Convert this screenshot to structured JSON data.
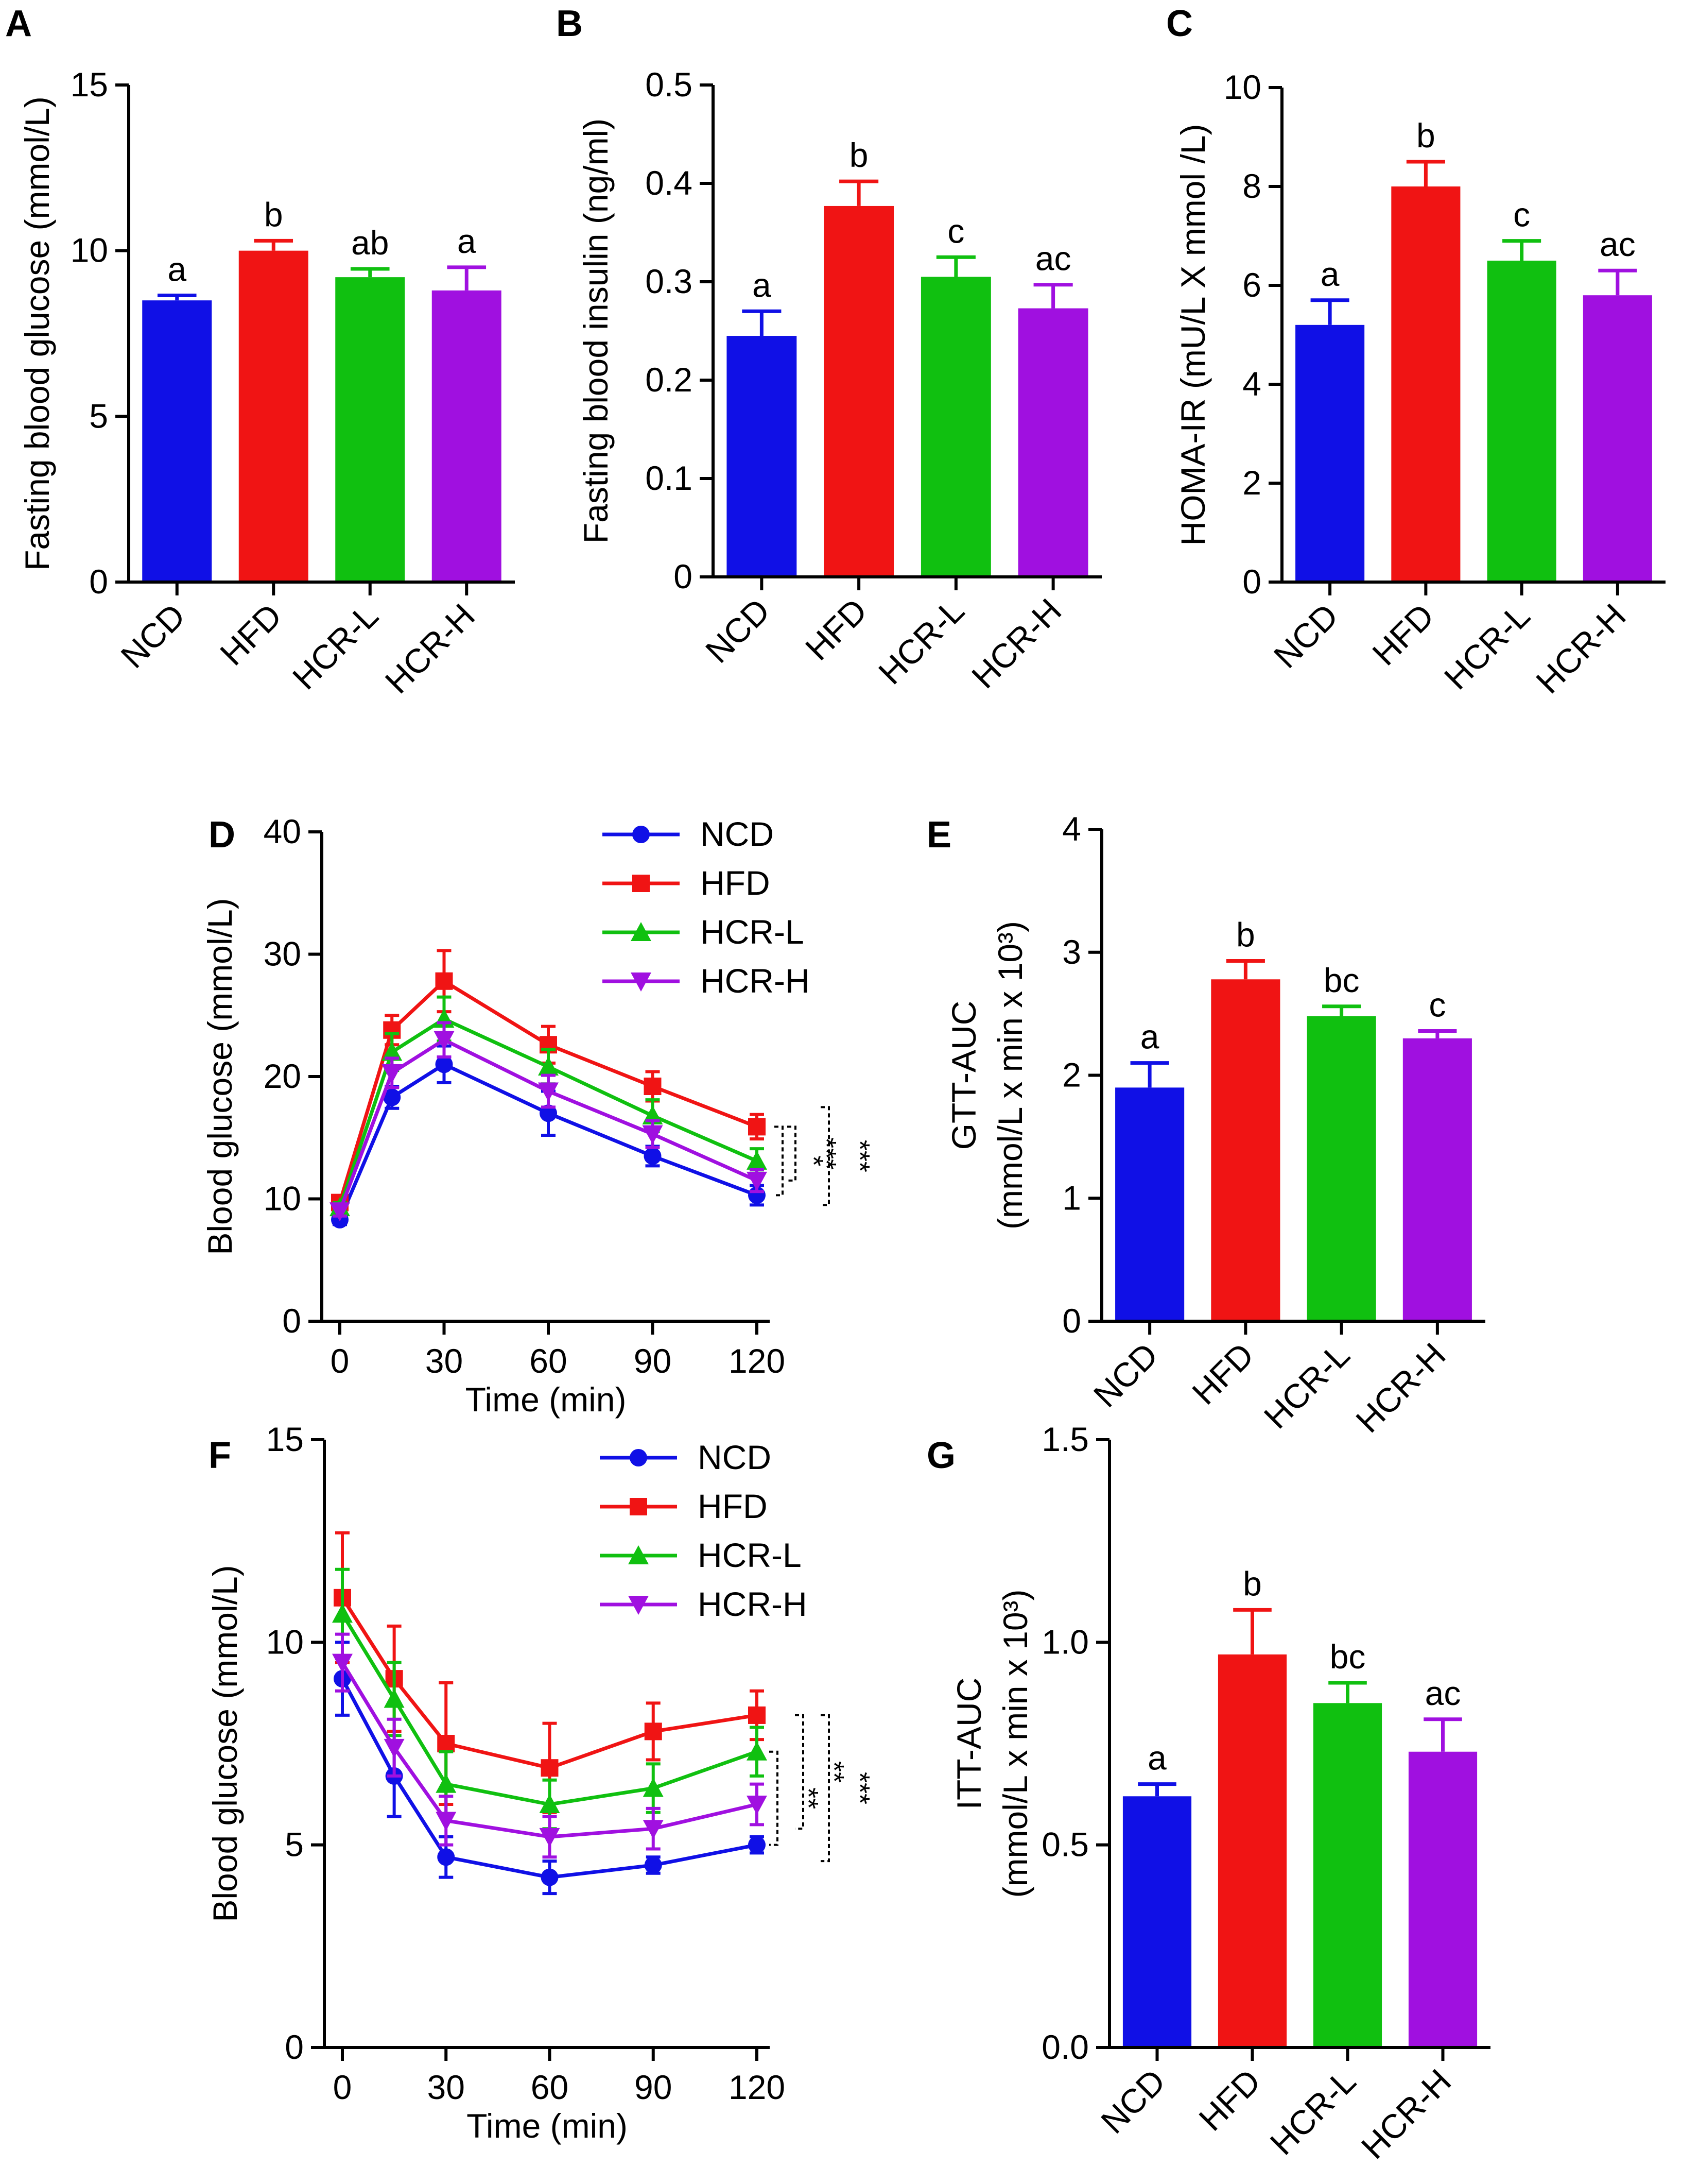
{
  "colors": {
    "NCD": "#1010e6",
    "HFD": "#f01414",
    "HCR-L": "#10c010",
    "HCR-H": "#a010e0"
  },
  "panels": [
    {
      "id": "A",
      "kind": "bar",
      "panel_label": "A",
      "ylabel": "Fasting blood glucose (mmol/L)",
      "ylim": [
        0,
        15
      ],
      "yticks": [
        "0",
        "5",
        "10",
        "15"
      ]
    },
    {
      "id": "B",
      "kind": "bar",
      "panel_label": "B",
      "ylabel": "Fasting blood insulin (ng/ml)",
      "ylim": [
        0,
        0.5
      ],
      "yticks": [
        "0",
        "0.1",
        "0.2",
        "0.3",
        "0.4",
        "0.5"
      ]
    },
    {
      "id": "C",
      "kind": "bar",
      "panel_label": "C",
      "ylabel": "HOMA-IR (mU/L X mmol /L)",
      "ylim": [
        0,
        10
      ],
      "yticks": [
        "0",
        "2",
        "4",
        "6",
        "8",
        "10"
      ]
    },
    {
      "id": "D",
      "kind": "line",
      "panel_label": "D",
      "ylabel": "Blood glucose (mmol/L)",
      "xlabel": "Time (min)",
      "ylim": [
        0,
        40
      ],
      "yticks": [
        "0",
        "10",
        "20",
        "30",
        "40"
      ],
      "xlim": [
        0,
        120
      ],
      "xticks": [
        "0",
        "30",
        "60",
        "90",
        "120"
      ]
    },
    {
      "id": "E",
      "kind": "bar",
      "panel_label": "E",
      "ylabel_line1": "GTT-AUC",
      "ylabel_line2": "(mmol/L x min x 10³)",
      "ylim": [
        0,
        4
      ],
      "yticks": [
        "0",
        "1",
        "2",
        "3",
        "4"
      ]
    },
    {
      "id": "F",
      "kind": "line",
      "panel_label": "F",
      "ylabel": "Blood glucose (mmol/L)",
      "xlabel": "Time (min)",
      "ylim": [
        0,
        15
      ],
      "yticks": [
        "0",
        "5",
        "10",
        "15"
      ],
      "xlim": [
        0,
        120
      ],
      "xticks": [
        "0",
        "30",
        "60",
        "90",
        "120"
      ]
    },
    {
      "id": "G",
      "kind": "bar",
      "panel_label": "G",
      "ylabel_line1": "ITT-AUC",
      "ylabel_line2": "(mmol/L x min x 10³)",
      "ylim": [
        0,
        1.5
      ],
      "yticks": [
        "0.0",
        "0.5",
        "1.0",
        "1.5"
      ]
    }
  ],
  "chart_data": [
    {
      "id": "A",
      "type": "bar",
      "title": "A",
      "ylabel": "Fasting blood glucose (mmol/L)",
      "ylim": [
        0,
        15
      ],
      "categories": [
        "NCD",
        "HFD",
        "HCR-L",
        "HCR-H"
      ],
      "values": [
        8.5,
        10.0,
        9.2,
        8.8
      ],
      "errors": [
        0.15,
        0.3,
        0.25,
        0.7
      ],
      "letters": [
        "a",
        "b",
        "ab",
        "a"
      ]
    },
    {
      "id": "B",
      "type": "bar",
      "title": "B",
      "ylabel": "Fasting blood insulin (ng/ml)",
      "ylim": [
        0,
        0.5
      ],
      "categories": [
        "NCD",
        "HFD",
        "HCR-L",
        "HCR-H"
      ],
      "values": [
        0.245,
        0.377,
        0.305,
        0.273
      ],
      "errors": [
        0.025,
        0.025,
        0.02,
        0.024
      ],
      "letters": [
        "a",
        "b",
        "c",
        "ac"
      ]
    },
    {
      "id": "C",
      "type": "bar",
      "title": "C",
      "ylabel": "HOMA-IR (mU/L X mmol /L)",
      "ylim": [
        0,
        10
      ],
      "categories": [
        "NCD",
        "HFD",
        "HCR-L",
        "HCR-H"
      ],
      "values": [
        5.2,
        8.0,
        6.5,
        5.8
      ],
      "errors": [
        0.5,
        0.5,
        0.4,
        0.5
      ],
      "letters": [
        "a",
        "b",
        "c",
        "ac"
      ]
    },
    {
      "id": "D",
      "type": "line",
      "title": "D",
      "xlabel": "Time (min)",
      "ylabel": "Blood glucose (mmol/L)",
      "ylim": [
        0,
        40
      ],
      "xlim": [
        0,
        120
      ],
      "x": [
        0,
        15,
        30,
        60,
        90,
        120
      ],
      "series": [
        {
          "name": "NCD",
          "values": [
            8.3,
            18.3,
            21.0,
            17.0,
            13.5,
            10.3
          ],
          "errors": [
            0.4,
            0.9,
            1.5,
            1.8,
            0.8,
            0.8
          ]
        },
        {
          "name": "HFD",
          "values": [
            9.7,
            23.8,
            27.8,
            22.6,
            19.2,
            15.9
          ],
          "errors": [
            0.5,
            1.2,
            2.5,
            1.5,
            1.2,
            1.0
          ]
        },
        {
          "name": "HCR-L",
          "values": [
            9.3,
            22.0,
            24.7,
            20.8,
            16.8,
            13.1
          ],
          "errors": [
            0.4,
            1.5,
            1.8,
            1.4,
            1.3,
            1.0
          ]
        },
        {
          "name": "HCR-H",
          "values": [
            9.0,
            20.3,
            23.0,
            18.8,
            15.3,
            11.5
          ],
          "errors": [
            0.4,
            1.2,
            1.4,
            1.3,
            1.1,
            0.9
          ]
        }
      ],
      "significance": [
        "*",
        "***",
        "***"
      ]
    },
    {
      "id": "E",
      "type": "bar",
      "title": "E",
      "ylabel": "GTT-AUC (mmol/L x min x 10³)",
      "ylim": [
        0,
        4
      ],
      "categories": [
        "NCD",
        "HFD",
        "HCR-L",
        "HCR-H"
      ],
      "values": [
        1.9,
        2.78,
        2.48,
        2.3
      ],
      "errors": [
        0.2,
        0.15,
        0.08,
        0.06
      ],
      "letters": [
        "a",
        "b",
        "bc",
        "c"
      ]
    },
    {
      "id": "F",
      "type": "line",
      "title": "F",
      "xlabel": "Time (min)",
      "ylabel": "Blood glucose (mmol/L)",
      "ylim": [
        0,
        15
      ],
      "xlim": [
        0,
        120
      ],
      "x": [
        0,
        15,
        30,
        60,
        90,
        120
      ],
      "series": [
        {
          "name": "NCD",
          "values": [
            9.1,
            6.7,
            4.7,
            4.2,
            4.5,
            5.0
          ],
          "errors": [
            0.9,
            1.0,
            0.5,
            0.4,
            0.2,
            0.2
          ]
        },
        {
          "name": "HFD",
          "values": [
            11.1,
            9.1,
            7.5,
            6.9,
            7.8,
            8.2
          ],
          "errors": [
            1.6,
            1.3,
            1.5,
            1.1,
            0.7,
            0.6
          ]
        },
        {
          "name": "HCR-L",
          "values": [
            10.7,
            8.6,
            6.5,
            6.0,
            6.4,
            7.3
          ],
          "errors": [
            1.1,
            0.9,
            0.8,
            0.6,
            0.6,
            0.6
          ]
        },
        {
          "name": "HCR-H",
          "values": [
            9.5,
            7.4,
            5.6,
            5.2,
            5.4,
            6.0
          ],
          "errors": [
            0.7,
            0.7,
            0.6,
            0.5,
            0.5,
            0.5
          ]
        }
      ],
      "significance": [
        "**",
        "**",
        "***"
      ]
    },
    {
      "id": "G",
      "type": "bar",
      "title": "G",
      "ylabel": "ITT-AUC (mmol/L x min x 10³)",
      "ylim": [
        0,
        1.5
      ],
      "categories": [
        "NCD",
        "HFD",
        "HCR-L",
        "HCR-H"
      ],
      "values": [
        0.62,
        0.97,
        0.85,
        0.73
      ],
      "errors": [
        0.03,
        0.11,
        0.05,
        0.08
      ],
      "letters": [
        "a",
        "b",
        "bc",
        "ac"
      ]
    }
  ]
}
